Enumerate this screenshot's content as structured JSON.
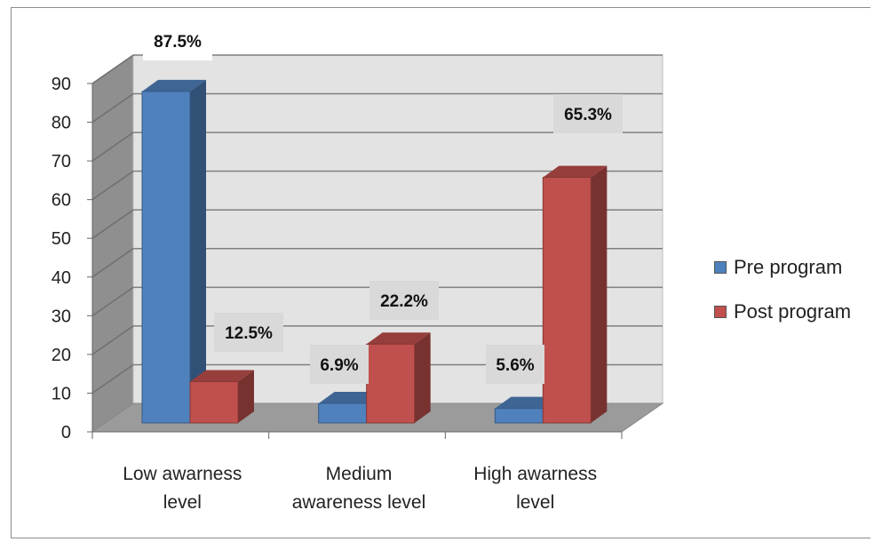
{
  "chart_data": {
    "type": "bar",
    "style": "3d-clustered-column",
    "categories": [
      "Low awarness level",
      "Medium awareness level",
      "High awarness level"
    ],
    "series": [
      {
        "name": "Pre program",
        "color": "#4f81bd",
        "values": [
          87.5,
          6.9,
          5.6
        ],
        "labels": [
          "87.5%",
          "6.9%",
          "5.6%"
        ]
      },
      {
        "name": "Post program",
        "color": "#c0504d",
        "values": [
          12.5,
          22.2,
          65.3
        ],
        "labels": [
          "12.5%",
          "22.2%",
          "65.3%"
        ]
      }
    ],
    "ylim": [
      0,
      90
    ],
    "yticks": [
      0,
      10,
      20,
      30,
      40,
      50,
      60,
      70,
      80,
      90
    ],
    "legend": "right",
    "grid": true
  }
}
